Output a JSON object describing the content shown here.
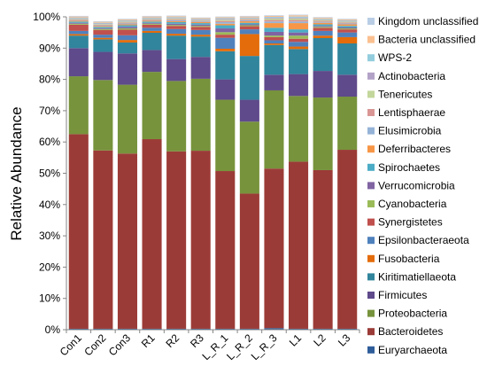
{
  "chart_data": {
    "type": "bar",
    "stacked": true,
    "percent": true,
    "ylabel": "Relative Abundance",
    "xlabel": "",
    "ylim": [
      0,
      100
    ],
    "yticks": [
      "0%",
      "10%",
      "20%",
      "30%",
      "40%",
      "50%",
      "60%",
      "70%",
      "80%",
      "90%",
      "100%"
    ],
    "grid": false,
    "legend_position": "right",
    "categories": [
      "Con1",
      "Con2",
      "Con3",
      "R1",
      "R2",
      "R3",
      "L_R_1",
      "L_R_2",
      "L_R_3",
      "L1",
      "L2",
      "L3"
    ],
    "series": [
      {
        "name": "Euryarchaeota",
        "color": "#2E5D9A",
        "values": [
          0.3,
          0.3,
          0.3,
          0.3,
          0.3,
          0.3,
          0.3,
          0.3,
          0.5,
          0.3,
          0.3,
          0.3
        ]
      },
      {
        "name": "Bacteroidetes",
        "color": "#9B3B37",
        "values": [
          62.2,
          57.0,
          56.0,
          60.6,
          56.7,
          56.9,
          50.4,
          43.2,
          51.0,
          53.4,
          50.7,
          57.2
        ]
      },
      {
        "name": "Proteobacteria",
        "color": "#77933C",
        "values": [
          18.5,
          22.5,
          22.0,
          21.5,
          22.5,
          23.0,
          22.8,
          23.0,
          25.0,
          21.0,
          23.2,
          17.0
        ]
      },
      {
        "name": "Firmicutes",
        "color": "#5F4A8B",
        "values": [
          9.0,
          9.0,
          10.0,
          7.0,
          7.0,
          7.0,
          6.5,
          7.0,
          5.0,
          7.0,
          8.5,
          7.0
        ]
      },
      {
        "name": "Kiritimatiellaeota",
        "color": "#31859C",
        "values": [
          4.0,
          4.0,
          3.5,
          5.5,
          7.5,
          6.5,
          9.0,
          14.0,
          9.5,
          8.0,
          10.5,
          10.0
        ]
      },
      {
        "name": "Fusobacteria",
        "color": "#E46C0A",
        "values": [
          0.5,
          0.5,
          0.8,
          0.6,
          0.6,
          0.6,
          0.8,
          7.0,
          0.5,
          0.8,
          0.8,
          2.0
        ]
      },
      {
        "name": "Epsilonbacteraeota",
        "color": "#4F81BD",
        "values": [
          1.0,
          1.0,
          1.5,
          1.0,
          1.5,
          1.5,
          3.5,
          1.5,
          1.0,
          1.5,
          1.5,
          1.5
        ]
      },
      {
        "name": "Synergistetes",
        "color": "#C0504D",
        "values": [
          2.0,
          1.5,
          1.8,
          1.0,
          1.0,
          1.0,
          1.0,
          1.0,
          1.0,
          1.0,
          1.0,
          1.0
        ]
      },
      {
        "name": "Cyanobacteria",
        "color": "#9BBB59",
        "values": [
          0.3,
          0.3,
          0.4,
          0.3,
          0.3,
          0.3,
          0.8,
          0.3,
          0.5,
          1.0,
          0.3,
          0.3
        ]
      },
      {
        "name": "Verrucomicrobia",
        "color": "#8064A2",
        "values": [
          0.3,
          0.3,
          0.5,
          0.3,
          0.4,
          0.4,
          1.2,
          0.3,
          1.2,
          1.0,
          0.3,
          0.3
        ]
      },
      {
        "name": "Spirochaetes",
        "color": "#4BACC6",
        "values": [
          0.4,
          0.4,
          0.5,
          0.4,
          0.5,
          0.5,
          1.0,
          0.5,
          1.3,
          1.0,
          0.5,
          0.5
        ]
      },
      {
        "name": "Deferribacteres",
        "color": "#F79646",
        "values": [
          0.3,
          0.3,
          0.3,
          0.3,
          0.3,
          0.3,
          0.5,
          0.5,
          1.5,
          2.0,
          0.5,
          0.5
        ]
      },
      {
        "name": "Elusimicrobia",
        "color": "#95B3D7",
        "values": [
          0.2,
          0.2,
          0.3,
          0.2,
          0.3,
          0.2,
          0.5,
          0.3,
          0.5,
          0.5,
          0.3,
          0.3
        ]
      },
      {
        "name": "Lentisphaerae",
        "color": "#D99694",
        "values": [
          0.2,
          0.2,
          0.3,
          0.2,
          0.3,
          0.2,
          0.4,
          0.3,
          0.5,
          0.5,
          0.3,
          0.3
        ]
      },
      {
        "name": "Tenericutes",
        "color": "#C3D69B",
        "values": [
          0.2,
          0.2,
          0.3,
          0.2,
          0.3,
          0.2,
          0.4,
          0.2,
          0.5,
          0.5,
          0.3,
          0.3
        ]
      },
      {
        "name": "Actinobacteria",
        "color": "#B3A2C7",
        "values": [
          0.2,
          0.2,
          0.2,
          0.2,
          0.2,
          0.2,
          0.3,
          0.2,
          0.3,
          0.3,
          0.2,
          0.2
        ]
      },
      {
        "name": "WPS-2",
        "color": "#93CDDD",
        "values": [
          0.2,
          0.2,
          0.2,
          0.2,
          0.2,
          0.2,
          0.2,
          0.2,
          0.2,
          0.3,
          0.2,
          0.2
        ]
      },
      {
        "name": "Bacteria unclassified",
        "color": "#FAC090",
        "values": [
          0.3,
          0.3,
          0.3,
          0.3,
          0.3,
          0.3,
          0.3,
          0.3,
          0.3,
          0.4,
          0.3,
          0.3
        ]
      },
      {
        "name": "Kingdom unclassified",
        "color": "#B9CDE5",
        "values": [
          0.2,
          0.2,
          0.2,
          0.2,
          0.2,
          0.2,
          0.2,
          0.2,
          0.2,
          0.2,
          0.2,
          0.2
        ]
      }
    ]
  }
}
